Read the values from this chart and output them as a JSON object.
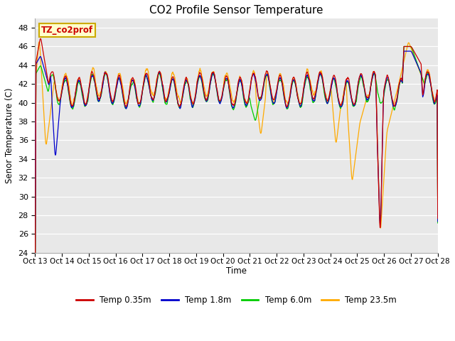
{
  "title": "CO2 Profile Sensor Temperature",
  "ylabel": "Senor Temperature (C)",
  "xlabel": "Time",
  "ylim": [
    24,
    49
  ],
  "yticks": [
    24,
    26,
    28,
    30,
    32,
    34,
    36,
    38,
    40,
    42,
    44,
    46,
    48
  ],
  "xtick_labels": [
    "Oct 13",
    "Oct 14",
    "Oct 15",
    "Oct 16",
    "Oct 17",
    "Oct 18",
    "Oct 19",
    "Oct 20",
    "Oct 21",
    "Oct 22",
    "Oct 23",
    "Oct 24",
    "Oct 25",
    "Oct 26",
    "Oct 27",
    "Oct 28"
  ],
  "colors": {
    "red": "#cc0000",
    "blue": "#0000cc",
    "green": "#00cc00",
    "orange": "#ffaa00"
  },
  "legend_labels": [
    "Temp 0.35m",
    "Temp 1.8m",
    "Temp 6.0m",
    "Temp 23.5m"
  ],
  "annotation_text": "TZ_co2prof",
  "annotation_bg": "#ffffcc",
  "annotation_border": "#ccaa00",
  "fig_bg": "#ffffff",
  "plot_bg": "#e8e8e8"
}
